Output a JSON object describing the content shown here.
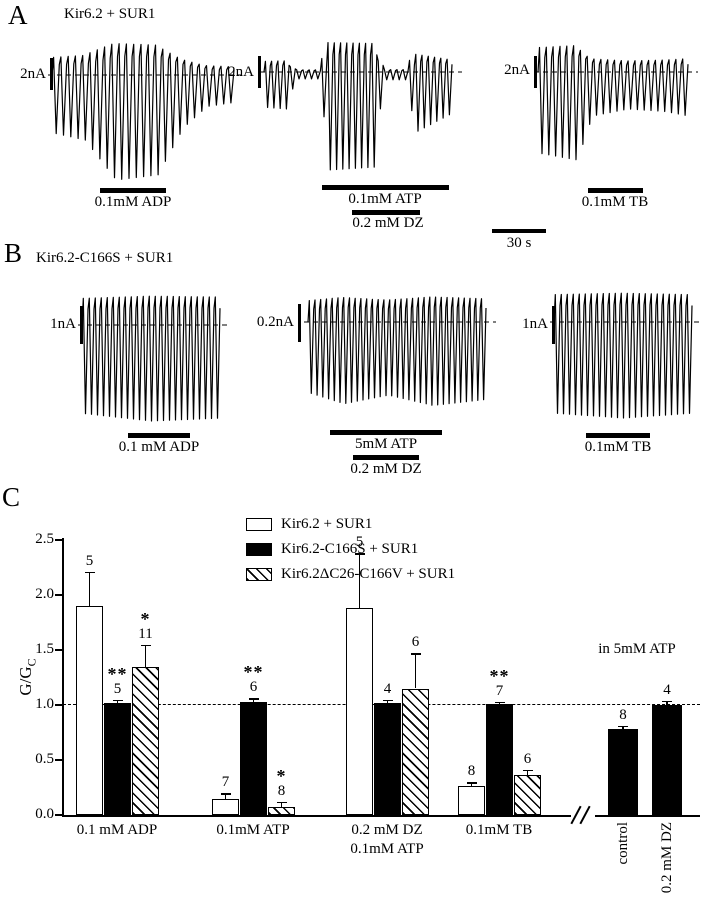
{
  "figure": {
    "panelA": {
      "label": "A",
      "title": "Kir6.2 + SUR1",
      "traces": [
        {
          "scale_label": "2nA",
          "n_cycles": 25,
          "envelope": [
            [
              0,
              0.55
            ],
            [
              0.18,
              0.62
            ],
            [
              0.35,
              1.0
            ],
            [
              0.58,
              0.95
            ],
            [
              0.72,
              0.5
            ],
            [
              0.85,
              0.3
            ],
            [
              1,
              0.26
            ]
          ],
          "drug_bars": [
            {
              "label": "0.1mM ADP"
            }
          ]
        },
        {
          "scale_label": "2nA",
          "n_cycles": 30,
          "envelope": [
            [
              0,
              0.36
            ],
            [
              0.13,
              0.38
            ],
            [
              0.16,
              0.07
            ],
            [
              0.3,
              0.07
            ],
            [
              0.34,
              1.0
            ],
            [
              0.59,
              0.97
            ],
            [
              0.63,
              0.08
            ],
            [
              0.76,
              0.08
            ],
            [
              0.8,
              0.62
            ],
            [
              0.92,
              0.5
            ],
            [
              1,
              0.42
            ]
          ],
          "drug_bars": [
            {
              "label": "0.1mM ATP"
            },
            {
              "label": "0.2 mM DZ"
            }
          ]
        },
        {
          "scale_label": "2nA",
          "n_cycles": 22,
          "envelope": [
            [
              0,
              0.92
            ],
            [
              0.26,
              1.0
            ],
            [
              0.36,
              0.5
            ],
            [
              0.6,
              0.42
            ],
            [
              0.85,
              0.45
            ],
            [
              1,
              0.5
            ]
          ],
          "drug_bars": [
            {
              "label": "0.1mM TB"
            }
          ]
        }
      ]
    },
    "time_scale_label": "30 s",
    "panelB": {
      "label": "B",
      "title": "Kir6.2-C166S + SUR1",
      "traces": [
        {
          "scale_label": "1nA",
          "n_cycles": 23,
          "envelope": [
            [
              0,
              0.92
            ],
            [
              0.5,
              1.0
            ],
            [
              1,
              0.97
            ]
          ],
          "drug_bars": [
            {
              "label": "0.1 mM ADP"
            }
          ]
        },
        {
          "scale_label": "0.2nA",
          "n_cycles": 31,
          "envelope": [
            [
              0,
              0.82
            ],
            [
              0.2,
              0.95
            ],
            [
              0.45,
              0.85
            ],
            [
              0.7,
              0.97
            ],
            [
              1,
              0.9
            ]
          ],
          "drug_bars": [
            {
              "label": "5mM ATP"
            },
            {
              "label": "0.2 mM DZ"
            }
          ]
        },
        {
          "scale_label": "1nA",
          "n_cycles": 23,
          "envelope": [
            [
              0,
              0.95
            ],
            [
              0.5,
              1.0
            ],
            [
              1,
              0.95
            ]
          ],
          "drug_bars": [
            {
              "label": "0.1mM TB"
            }
          ]
        }
      ]
    },
    "panelC": {
      "label": "C"
    }
  },
  "chart_data": {
    "type": "bar",
    "ylabel_main": "G/G",
    "ylabel_sub": "C",
    "ylim": [
      0,
      2.5
    ],
    "ytick_labels": [
      "0.0",
      "0.5",
      "1.0",
      "1.5",
      "2.0",
      "2.5"
    ],
    "reference_line": 1.0,
    "annotation": "in 5mM ATP",
    "legend": [
      {
        "style": "open",
        "label": "Kir6.2 + SUR1"
      },
      {
        "style": "filled",
        "label": "Kir6.2-C166S + SUR1"
      },
      {
        "style": "hatched",
        "label": "Kir6.2ΔC26-C166V + SUR1"
      }
    ],
    "groups": [
      {
        "category": "0.1 mM ADP",
        "bars": [
          {
            "series": "Kir6.2 + SUR1",
            "style": "open",
            "value": 1.9,
            "err": 0.31,
            "n": "5",
            "sig": ""
          },
          {
            "series": "Kir6.2-C166S + SUR1",
            "style": "filled",
            "value": 1.02,
            "err": 0.03,
            "n": "5",
            "sig": "**"
          },
          {
            "series": "Kir6.2ΔC26-C166V + SUR1",
            "style": "hatched",
            "value": 1.35,
            "err": 0.2,
            "n": "11",
            "sig": "*"
          }
        ]
      },
      {
        "category": "0.1mM ATP",
        "bars": [
          {
            "series": "Kir6.2 + SUR1",
            "style": "open",
            "value": 0.15,
            "err": 0.05,
            "n": "7",
            "sig": ""
          },
          {
            "series": "Kir6.2-C166S + SUR1",
            "style": "filled",
            "value": 1.03,
            "err": 0.03,
            "n": "6",
            "sig": "**"
          },
          {
            "series": "Kir6.2ΔC26-C166V + SUR1",
            "style": "hatched",
            "value": 0.07,
            "err": 0.05,
            "n": "8",
            "sig": "*"
          }
        ]
      },
      {
        "category": "0.2 mM DZ",
        "category_line2": "0.1mM ATP",
        "bars": [
          {
            "series": "Kir6.2 + SUR1",
            "style": "open",
            "value": 1.88,
            "err": 0.5,
            "n": "5",
            "sig": ""
          },
          {
            "series": "Kir6.2-C166S + SUR1",
            "style": "filled",
            "value": 1.02,
            "err": 0.03,
            "n": "4",
            "sig": ""
          },
          {
            "series": "Kir6.2ΔC26-C166V + SUR1",
            "style": "hatched",
            "value": 1.15,
            "err": 0.32,
            "n": "6",
            "sig": ""
          }
        ]
      },
      {
        "category": "0.1mM TB",
        "bars": [
          {
            "series": "Kir6.2 + SUR1",
            "style": "open",
            "value": 0.26,
            "err": 0.04,
            "n": "8",
            "sig": ""
          },
          {
            "series": "Kir6.2-C166S + SUR1",
            "style": "filled",
            "value": 1.01,
            "err": 0.02,
            "n": "7",
            "sig": "**"
          },
          {
            "series": "Kir6.2ΔC26-C166V + SUR1",
            "style": "hatched",
            "value": 0.36,
            "err": 0.05,
            "n": "6",
            "sig": ""
          }
        ]
      },
      {
        "category": "",
        "axis_break_before": true,
        "bars": [
          {
            "series": "Kir6.2-C166S + SUR1",
            "style": "filled",
            "value": 0.78,
            "err": 0.03,
            "n": "8",
            "sig": "",
            "xlabel": "control"
          },
          {
            "series": "Kir6.2-C166S + SUR1",
            "style": "filled",
            "value": 1.0,
            "err": 0.04,
            "n": "4",
            "sig": "",
            "xlabel": "0.2 mM DZ"
          }
        ]
      }
    ]
  }
}
